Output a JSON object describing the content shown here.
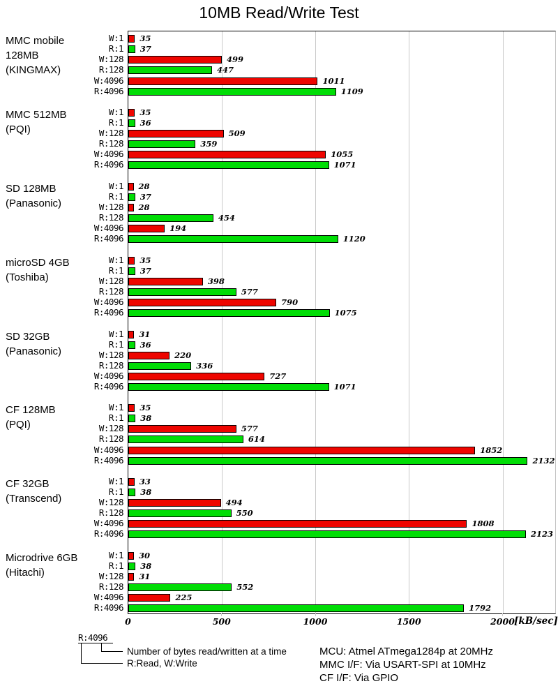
{
  "title": "10MB Read/Write Test",
  "chart_data": {
    "type": "bar",
    "orientation": "horizontal",
    "title": "10MB Read/Write Test",
    "unit_label": "[kB/sec]",
    "x_ticks": [
      0,
      500,
      1000,
      1500,
      2000
    ],
    "xlim": [
      0,
      2280
    ],
    "grid": true,
    "colors": {
      "write_bar": "#ee0500",
      "read_bar": "#00dd05",
      "gridline": "#c9c9c9"
    },
    "row_labels": [
      "W:1",
      "R:1",
      "W:128",
      "R:128",
      "W:4096",
      "R:4096"
    ],
    "groups": [
      {
        "label_lines": [
          "MMC mobile",
          "128MB",
          "(KINGMAX)"
        ],
        "values": [
          35,
          37,
          499,
          447,
          1011,
          1109
        ]
      },
      {
        "label_lines": [
          "MMC 512MB",
          "(PQI)"
        ],
        "values": [
          35,
          36,
          509,
          359,
          1055,
          1071
        ]
      },
      {
        "label_lines": [
          "SD 128MB",
          "(Panasonic)"
        ],
        "values": [
          28,
          37,
          28,
          454,
          194,
          1120
        ]
      },
      {
        "label_lines": [
          "microSD 4GB",
          "(Toshiba)"
        ],
        "values": [
          35,
          37,
          398,
          577,
          790,
          1075
        ]
      },
      {
        "label_lines": [
          "SD 32GB",
          "(Panasonic)"
        ],
        "values": [
          31,
          36,
          220,
          336,
          727,
          1071
        ]
      },
      {
        "label_lines": [
          "CF 128MB",
          "(PQI)"
        ],
        "values": [
          35,
          38,
          577,
          614,
          1852,
          2132
        ]
      },
      {
        "label_lines": [
          "CF 32GB",
          "(Transcend)"
        ],
        "values": [
          33,
          38,
          494,
          550,
          1808,
          2123
        ]
      },
      {
        "label_lines": [
          "Microdrive 6GB",
          "(Hitachi)"
        ],
        "values": [
          30,
          38,
          31,
          552,
          225,
          1792
        ]
      }
    ]
  },
  "legend": {
    "example": "R:4096",
    "note_bytes": "Number of bytes read/written at a time",
    "note_rw": "R:Read, W:Write"
  },
  "info": {
    "lines": [
      "MCU: Atmel ATmega1284p at 20MHz",
      "MMC I/F: Via USART-SPI at 10MHz",
      "CF I/F: Via GPIO"
    ]
  }
}
